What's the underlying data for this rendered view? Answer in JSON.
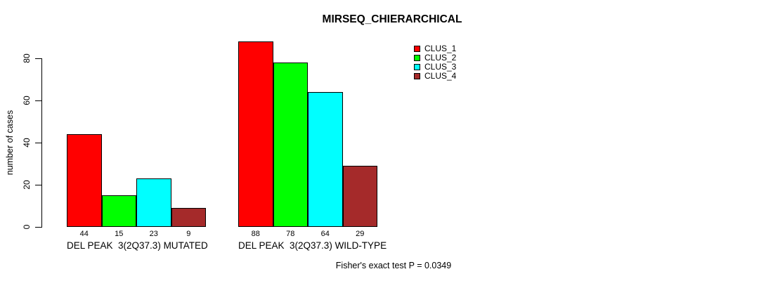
{
  "chart_data": {
    "type": "bar",
    "title": "MIRSEQ_CHIERARCHICAL",
    "ylabel": "number of cases",
    "xlabel": "",
    "ylim": [
      0,
      88
    ],
    "yticks": [
      0,
      20,
      40,
      60,
      80
    ],
    "grid": false,
    "background": "#ffffff",
    "bar_border_color": "#000000",
    "legend_position": "top-right",
    "show_bar_values": true,
    "categories": [
      "DEL PEAK  3(2Q37.3) MUTATED",
      "DEL PEAK  3(2Q37.3) WILD-TYPE"
    ],
    "series": [
      {
        "name": "CLUS_1",
        "color": "#ff0000",
        "values": [
          44,
          88
        ]
      },
      {
        "name": "CLUS_2",
        "color": "#00ff00",
        "values": [
          15,
          78
        ]
      },
      {
        "name": "CLUS_3",
        "color": "#00ffff",
        "values": [
          23,
          64
        ]
      },
      {
        "name": "CLUS_4",
        "color": "#a52a2a",
        "values": [
          9,
          29
        ]
      }
    ],
    "annotation": "Fisher's exact test P = 0.0349"
  }
}
